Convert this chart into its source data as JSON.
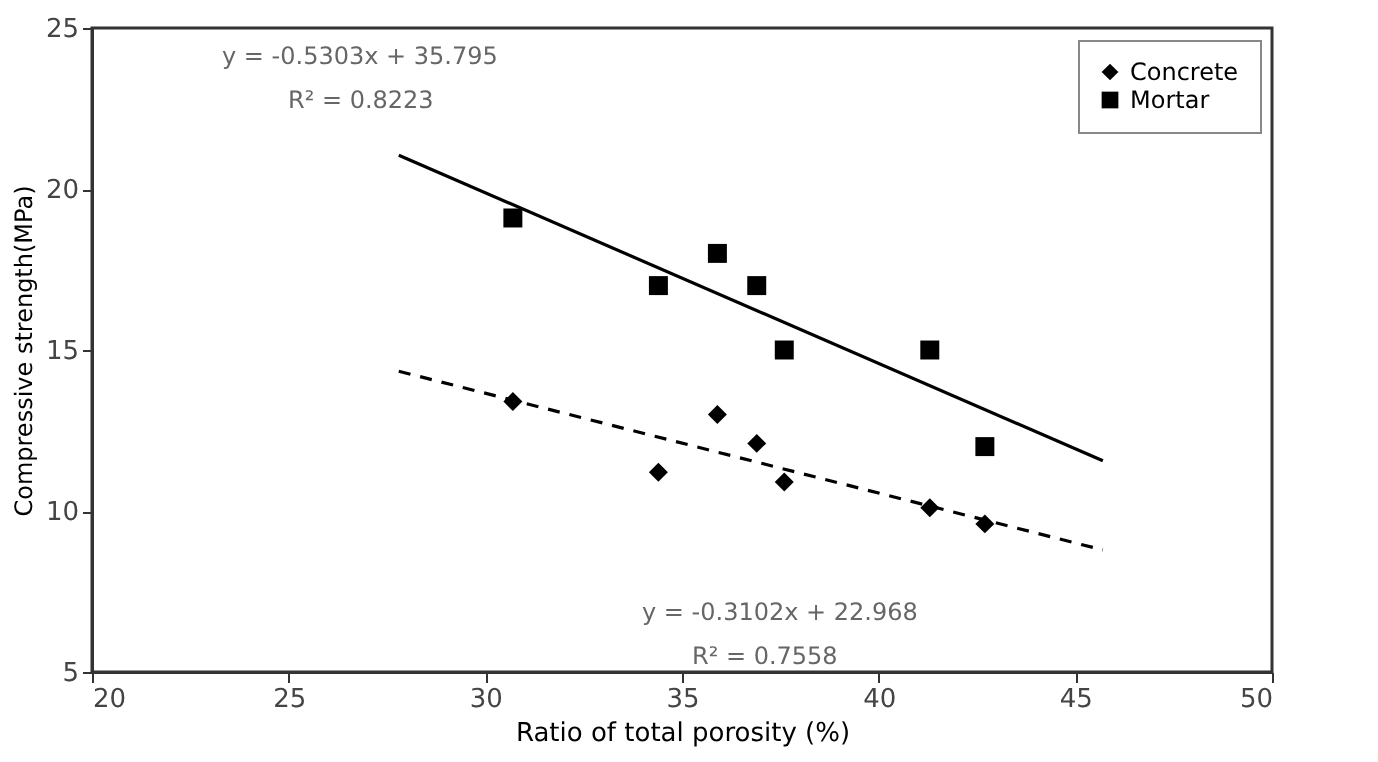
{
  "chart_data": {
    "type": "scatter",
    "xlabel": "Ratio of total porosity (%)",
    "ylabel": "Compressive strength(MPa)",
    "xlim": [
      20,
      50
    ],
    "xticks": [
      20,
      25,
      30,
      35,
      40,
      45,
      50
    ],
    "ylim": [
      5,
      25
    ],
    "yticks": [
      5,
      10,
      15,
      20,
      25
    ],
    "grid": false,
    "legend": "top right",
    "series": [
      {
        "name": "Concrete",
        "marker": "diamond",
        "color": "#000000",
        "x": [
          30.7,
          34.4,
          35.9,
          36.9,
          37.6,
          41.3,
          42.7
        ],
        "values": [
          13.4,
          11.2,
          13.0,
          12.1,
          10.9,
          10.1,
          9.6
        ]
      },
      {
        "name": "Mortar",
        "marker": "square",
        "color": "#000000",
        "x": [
          30.7,
          34.4,
          35.9,
          36.9,
          37.6,
          41.3,
          42.7
        ],
        "values": [
          19.1,
          17.0,
          18.0,
          17.0,
          15.0,
          15.0,
          12.0
        ]
      },
      {
        "type": "line",
        "line_style": "solid",
        "color": "#000000",
        "x": [
          27.8,
          45.7
        ],
        "values": [
          21.05,
          11.56
        ]
      },
      {
        "type": "line",
        "line_style": "dashed",
        "color": "#000000",
        "x": [
          27.8,
          45.7
        ],
        "values": [
          14.34,
          8.79
        ]
      }
    ],
    "annotations": [
      "y = -0.5303x + 35.795",
      "R² = 0.8223",
      "y = -0.3102x + 22.968",
      "R² = 0.7558"
    ]
  }
}
